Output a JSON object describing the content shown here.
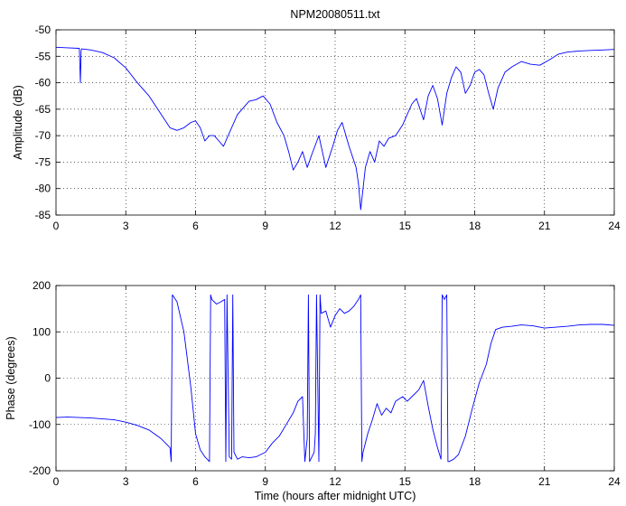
{
  "chart_data": [
    {
      "type": "line",
      "title": "NPM20080511.txt",
      "xlabel": "",
      "ylabel": "Amplitude (dB)",
      "xlim": [
        0,
        24
      ],
      "ylim": [
        -85,
        -50
      ],
      "xticks": [
        0,
        3,
        6,
        9,
        12,
        15,
        18,
        21,
        24
      ],
      "yticks": [
        -85,
        -80,
        -75,
        -70,
        -65,
        -60,
        -55,
        -50
      ],
      "grid": true,
      "series": [
        {
          "color": "#0000ff",
          "x": [
            0,
            0.5,
            1.0,
            1.02,
            1.05,
            1.08,
            1.1,
            1.5,
            2.0,
            2.5,
            3.0,
            3.5,
            4.0,
            4.3,
            4.6,
            4.9,
            5.2,
            5.5,
            5.8,
            6.0,
            6.2,
            6.4,
            6.6,
            6.8,
            7.0,
            7.2,
            7.5,
            7.8,
            8.0,
            8.3,
            8.6,
            8.9,
            9.2,
            9.5,
            9.8,
            10.0,
            10.2,
            10.4,
            10.6,
            10.8,
            11.0,
            11.3,
            11.6,
            11.9,
            12.1,
            12.3,
            12.6,
            12.9,
            13.0,
            13.1,
            13.2,
            13.3,
            13.5,
            13.7,
            13.9,
            14.1,
            14.3,
            14.6,
            14.9,
            15.1,
            15.3,
            15.5,
            15.8,
            16.0,
            16.2,
            16.4,
            16.6,
            16.8,
            17.0,
            17.2,
            17.4,
            17.6,
            17.8,
            18.0,
            18.2,
            18.4,
            18.6,
            18.8,
            19.0,
            19.3,
            19.6,
            20.0,
            20.4,
            20.8,
            21.2,
            21.6,
            22.0,
            22.5,
            23.0,
            23.5,
            24.0
          ],
          "y": [
            -53.3,
            -53.4,
            -53.5,
            -56.0,
            -60.0,
            -54.0,
            -53.6,
            -53.8,
            -54.3,
            -55.3,
            -57.2,
            -60.0,
            -62.5,
            -64.5,
            -66.5,
            -68.5,
            -69.0,
            -68.5,
            -67.5,
            -67.2,
            -68.5,
            -71.0,
            -70.0,
            -70.0,
            -71.0,
            -72.0,
            -69.0,
            -66.0,
            -65.0,
            -63.5,
            -63.2,
            -62.5,
            -64.0,
            -67.5,
            -70.0,
            -73.0,
            -76.5,
            -75.0,
            -73.0,
            -76.0,
            -73.5,
            -70.0,
            -76.0,
            -72.0,
            -69.0,
            -67.5,
            -72.0,
            -76.0,
            -79.0,
            -84.0,
            -80.0,
            -76.0,
            -73.0,
            -75.0,
            -71.0,
            -72.0,
            -70.5,
            -70.0,
            -68.0,
            -66.0,
            -64.0,
            -63.0,
            -67.0,
            -62.5,
            -60.5,
            -63.0,
            -68.0,
            -62.0,
            -59.0,
            -57.0,
            -58.0,
            -62.0,
            -60.5,
            -58.0,
            -57.5,
            -58.5,
            -62.0,
            -65.0,
            -61.0,
            -58.0,
            -57.0,
            -56.0,
            -56.5,
            -56.7,
            -55.7,
            -54.6,
            -54.2,
            -54.0,
            -53.9,
            -53.8,
            -53.7
          ]
        }
      ]
    },
    {
      "type": "line",
      "title": "",
      "xlabel": "Time (hours after midnight UTC)",
      "ylabel": "Phase (degrees)",
      "xlim": [
        0,
        24
      ],
      "ylim": [
        -200,
        200
      ],
      "xticks": [
        0,
        3,
        6,
        9,
        12,
        15,
        18,
        21,
        24
      ],
      "yticks": [
        -200,
        -100,
        0,
        100,
        200
      ],
      "grid": true,
      "series": [
        {
          "color": "#0000ff",
          "x": [
            0,
            0.5,
            1.0,
            1.5,
            2.0,
            2.5,
            3.0,
            3.5,
            4.0,
            4.5,
            4.9,
            4.95,
            5.0,
            5.2,
            5.5,
            5.8,
            6.0,
            6.2,
            6.4,
            6.6,
            6.65,
            6.7,
            6.9,
            7.1,
            7.25,
            7.3,
            7.35,
            7.45,
            7.55,
            7.6,
            7.65,
            7.8,
            8.0,
            8.3,
            8.6,
            9.0,
            9.3,
            9.6,
            9.9,
            10.2,
            10.4,
            10.6,
            10.7,
            10.8,
            10.85,
            10.9,
            11.0,
            11.1,
            11.15,
            11.2,
            11.3,
            11.35,
            11.4,
            11.6,
            11.8,
            12.0,
            12.2,
            12.4,
            12.6,
            12.8,
            13.0,
            13.1,
            13.15,
            13.2,
            13.4,
            13.6,
            13.8,
            14.0,
            14.2,
            14.4,
            14.6,
            14.9,
            15.1,
            15.3,
            15.6,
            15.8,
            16.0,
            16.2,
            16.4,
            16.55,
            16.6,
            16.7,
            16.8,
            16.85,
            16.9,
            17.1,
            17.3,
            17.6,
            17.9,
            18.2,
            18.5,
            18.7,
            18.9,
            19.2,
            19.6,
            20.0,
            20.5,
            21.0,
            21.5,
            22.0,
            22.5,
            23.0,
            23.5,
            24.0
          ],
          "y": [
            -85,
            -84,
            -85,
            -86,
            -88,
            -90,
            -95,
            -102,
            -112,
            -130,
            -150,
            -180,
            180,
            165,
            100,
            -20,
            -120,
            -155,
            -170,
            -180,
            180,
            170,
            160,
            165,
            170,
            -180,
            180,
            -170,
            -175,
            180,
            -160,
            -175,
            -170,
            -172,
            -170,
            -160,
            -140,
            -125,
            -100,
            -75,
            -50,
            -40,
            -180,
            -130,
            180,
            -180,
            -170,
            -160,
            -120,
            180,
            -180,
            180,
            140,
            145,
            110,
            135,
            150,
            140,
            145,
            155,
            170,
            180,
            -180,
            -160,
            -120,
            -90,
            -55,
            -80,
            -65,
            -75,
            -50,
            -40,
            -50,
            -40,
            -25,
            -5,
            -60,
            -110,
            -150,
            -175,
            180,
            170,
            180,
            -180,
            -180,
            -175,
            -165,
            -125,
            -65,
            -10,
            30,
            75,
            105,
            110,
            112,
            115,
            113,
            108,
            110,
            112,
            115,
            116,
            116,
            114
          ]
        }
      ]
    }
  ]
}
